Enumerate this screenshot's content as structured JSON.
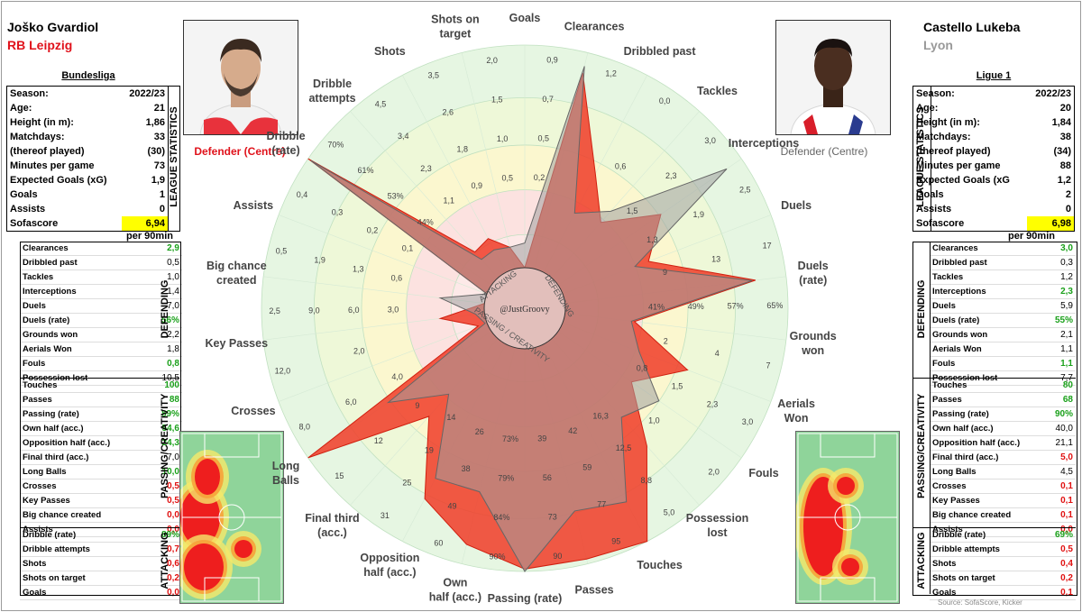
{
  "credit": "@JustGroovy",
  "source": "Source: SofaScore, Kicker",
  "left": {
    "name": "Joško Gvardiol",
    "club": "RB Leipzig",
    "club_color": "#e0121b",
    "league": "Bundesliga",
    "position": "Defender (Centre)",
    "league_stats": [
      [
        "Season:",
        "2022/23"
      ],
      [
        "Age:",
        "21"
      ],
      [
        "Height (in m):",
        "1,86"
      ],
      [
        "Matchdays:",
        "33"
      ],
      [
        "(thereof played)",
        "(30)"
      ],
      [
        "Minutes per game",
        "73"
      ],
      [
        "Expected Goals (xG)",
        "1,9"
      ],
      [
        "Goals",
        "1"
      ],
      [
        "Assists",
        "0"
      ],
      [
        "Sofascore",
        "6,94"
      ]
    ],
    "per90_label": "per 90min",
    "defending": [
      [
        "Clearances",
        "2,9",
        "g"
      ],
      [
        "Dribbled past",
        "0,5",
        ""
      ],
      [
        "Tackles",
        "1,0",
        ""
      ],
      [
        "Interceptions",
        "1,4",
        ""
      ],
      [
        "Duels",
        "7,0",
        ""
      ],
      [
        "Duels (rate)",
        "56%",
        "g"
      ],
      [
        "Grounds won",
        "2,2",
        ""
      ],
      [
        "Aerials Won",
        "1,8",
        ""
      ],
      [
        "Fouls",
        "0,8",
        "g"
      ],
      [
        "Possession lost",
        "10,5",
        ""
      ]
    ],
    "passing": [
      [
        "Touches",
        "100",
        "g"
      ],
      [
        "Passes",
        "88",
        "g"
      ],
      [
        "Passing (rate)",
        "89%",
        "g"
      ],
      [
        "Own half (acc.)",
        "54,6",
        "g"
      ],
      [
        "Opposition half (acc.)",
        "24,3",
        "g"
      ],
      [
        "Final third (acc.)",
        "7,0",
        ""
      ],
      [
        "Long Balls",
        "10,0",
        "g"
      ],
      [
        "Crosses",
        "0,5",
        "r"
      ],
      [
        "Key Passes",
        "0,5",
        "r"
      ],
      [
        "Big chance created",
        "0,0",
        "r"
      ],
      [
        "Assists",
        "0,0",
        "r"
      ]
    ],
    "attacking": [
      [
        "Dribble (rate)",
        "89%",
        "g"
      ],
      [
        "Dribble attempts",
        "0,7",
        "r"
      ],
      [
        "Shots",
        "0,6",
        "r"
      ],
      [
        "Shots on target",
        "0,2",
        "r"
      ],
      [
        "Goals",
        "0,0",
        "r"
      ]
    ]
  },
  "right": {
    "name": "Castello Lukeba",
    "club": "Lyon",
    "club_color": "#999999",
    "league": "Ligue 1",
    "position": "Defender (Centre)",
    "league_stats": [
      [
        "Season:",
        "2022/23"
      ],
      [
        "Age:",
        "20"
      ],
      [
        "Height (in m):",
        "1,84"
      ],
      [
        "Matchdays:",
        "38"
      ],
      [
        "(thereof played)",
        "(34)"
      ],
      [
        "Minutes per game",
        "88"
      ],
      [
        "Expected Goals (xG",
        "1,2"
      ],
      [
        "Goals",
        "2"
      ],
      [
        "Assists",
        "0"
      ],
      [
        "Sofascore",
        "6,98"
      ]
    ],
    "per90_label": "per 90min",
    "defending": [
      [
        "Clearances",
        "3,0",
        "g"
      ],
      [
        "Dribbled past",
        "0,3",
        ""
      ],
      [
        "Tackles",
        "1,2",
        ""
      ],
      [
        "Interceptions",
        "2,3",
        "g"
      ],
      [
        "Duels",
        "5,9",
        ""
      ],
      [
        "Duels (rate)",
        "55%",
        "g"
      ],
      [
        "Grounds won",
        "2,1",
        ""
      ],
      [
        "Aerials Won",
        "1,1",
        ""
      ],
      [
        "Fouls",
        "1,1",
        "g"
      ],
      [
        "Possession lost",
        "7,7",
        ""
      ]
    ],
    "passing": [
      [
        "Touches",
        "80",
        "g"
      ],
      [
        "Passes",
        "68",
        "g"
      ],
      [
        "Passing (rate)",
        "90%",
        "g"
      ],
      [
        "Own half (acc.)",
        "40,0",
        ""
      ],
      [
        "Opposition half (acc.)",
        "21,1",
        ""
      ],
      [
        "Final third (acc.)",
        "5,0",
        "r"
      ],
      [
        "Long Balls",
        "4,5",
        ""
      ],
      [
        "Crosses",
        "0,1",
        "r"
      ],
      [
        "Key Passes",
        "0,1",
        "r"
      ],
      [
        "Big chance created",
        "0,1",
        "r"
      ],
      [
        "Assists",
        "0,0",
        "r"
      ]
    ],
    "attacking": [
      [
        "Dribble (rate)",
        "69%",
        "g"
      ],
      [
        "Dribble attempts",
        "0,5",
        "r"
      ],
      [
        "Shots",
        "0,4",
        "r"
      ],
      [
        "Shots on target",
        "0,2",
        "r"
      ],
      [
        "Goals",
        "0,1",
        "r"
      ]
    ]
  },
  "section_labels": {
    "league": "LEAGUE STATISTICS",
    "defending": "DEFENDING",
    "passing": "PASSING/CREATIVITY",
    "attacking": "ATTACKING"
  },
  "chart_data": {
    "type": "radar",
    "center_labels": [
      "ATTACKING",
      "DEFENDING",
      "PASSING / CREATIVITY"
    ],
    "series": [
      {
        "name": "Joško Gvardiol",
        "color": "#f03c28",
        "values": [
          0.0,
          2.9,
          0.5,
          1.0,
          1.4,
          7.0,
          56,
          2.2,
          1.8,
          0.8,
          10.5,
          100,
          88,
          89,
          54.6,
          24.3,
          7.0,
          10.0,
          0.5,
          0.5,
          0.0,
          0.0,
          89,
          0.7,
          0.6,
          0.2
        ]
      },
      {
        "name": "Castello Lukeba",
        "color": "#a0a0a0",
        "values": [
          0.1,
          3.0,
          0.3,
          1.2,
          2.3,
          5.9,
          55,
          2.1,
          1.1,
          1.1,
          7.7,
          80,
          68,
          90,
          40.0,
          21.1,
          5.0,
          4.5,
          0.1,
          0.1,
          0.1,
          0.0,
          69,
          0.5,
          0.4,
          0.2
        ]
      }
    ],
    "axes": [
      {
        "label": "Goals",
        "max": 0.9,
        "ticks": [
          "0,2",
          "0,5",
          "0,7",
          "0,9"
        ]
      },
      {
        "label": "Clearances",
        "max": 3.2,
        "ticks": [
          "1,2"
        ]
      },
      {
        "label": "Dribbled past",
        "max": 1.0,
        "ticks": [
          "0,6",
          "0,0"
        ]
      },
      {
        "label": "Tackles",
        "max": 3.0,
        "ticks": [
          "1,5",
          "2,3",
          "3,0"
        ]
      },
      {
        "label": "Interceptions",
        "max": 2.5,
        "ticks": [
          "1,3",
          "1,9",
          "2,5"
        ]
      },
      {
        "label": "Duels",
        "max": 17,
        "ticks": [
          "9",
          "13",
          "17"
        ]
      },
      {
        "label": "Duels\n(rate)",
        "max": 65,
        "ticks": [
          "41%",
          "49%",
          "57%",
          "65%"
        ]
      },
      {
        "label": "Grounds\nwon",
        "max": 7,
        "ticks": [
          "2",
          "4",
          "7"
        ]
      },
      {
        "label": "Aerials\nWon",
        "max": 3.0,
        "ticks": [
          "0,8",
          "1,5",
          "2,3",
          "3,0"
        ]
      },
      {
        "label": "Fouls",
        "max": 2.0,
        "ticks": [
          "1,0",
          "2,0"
        ]
      },
      {
        "label": "Possession\nlost",
        "max": 16.3,
        "ticks": [
          "16,3",
          "12,5",
          "8,8",
          "5,0"
        ]
      },
      {
        "label": "Touches",
        "max": 100,
        "ticks": [
          "42",
          "59",
          "77",
          "95"
        ]
      },
      {
        "label": "Passes",
        "max": 90,
        "ticks": [
          "39",
          "56",
          "73",
          "90"
        ]
      },
      {
        "label": "Passing (rate)",
        "max": 90,
        "ticks": [
          "73%",
          "79%",
          "84%",
          "90%"
        ]
      },
      {
        "label": "Own\nhalf (acc.)",
        "max": 60,
        "ticks": [
          "26",
          "38",
          "49",
          "60"
        ]
      },
      {
        "label": "Opposition\nhalf (acc.)",
        "max": 31,
        "ticks": [
          "14",
          "19",
          "25",
          "31"
        ]
      },
      {
        "label": "Final third\n(acc.)",
        "max": 15,
        "ticks": [
          "9",
          "12",
          "15"
        ]
      },
      {
        "label": "Long\nBalls",
        "max": 8.0,
        "ticks": [
          "4,0",
          "6,0",
          "8,0"
        ]
      },
      {
        "label": "Crosses",
        "max": 12.0,
        "ticks": [
          "2,0",
          "12,0"
        ]
      },
      {
        "label": "Key Passes",
        "max": 2.5,
        "ticks": [
          "3,0",
          "6,0",
          "9,0",
          "2,5"
        ]
      },
      {
        "label": "Big chance\ncreated",
        "max": 0.5,
        "ticks": [
          "0,6",
          "1,3",
          "1,9",
          "0,5"
        ]
      },
      {
        "label": "Assists",
        "max": 0.3,
        "ticks": [
          "0,1",
          "0,2",
          "0,3",
          "0,4"
        ]
      },
      {
        "label": "Dribble\n(rate)",
        "max": 70,
        "ticks": [
          "44%",
          "53%",
          "61%",
          "70%"
        ]
      },
      {
        "label": "Dribble\nattempts",
        "max": 4.5,
        "ticks": [
          "1,1",
          "2,3",
          "3,4",
          "4,5"
        ]
      },
      {
        "label": "Shots",
        "max": 3.5,
        "ticks": [
          "0,9",
          "1,8",
          "2,6",
          "3,5"
        ]
      },
      {
        "label": "Shots on\ntarget",
        "max": 2.0,
        "ticks": [
          "0,5",
          "1,0",
          "1,5",
          "2,0"
        ]
      }
    ]
  }
}
